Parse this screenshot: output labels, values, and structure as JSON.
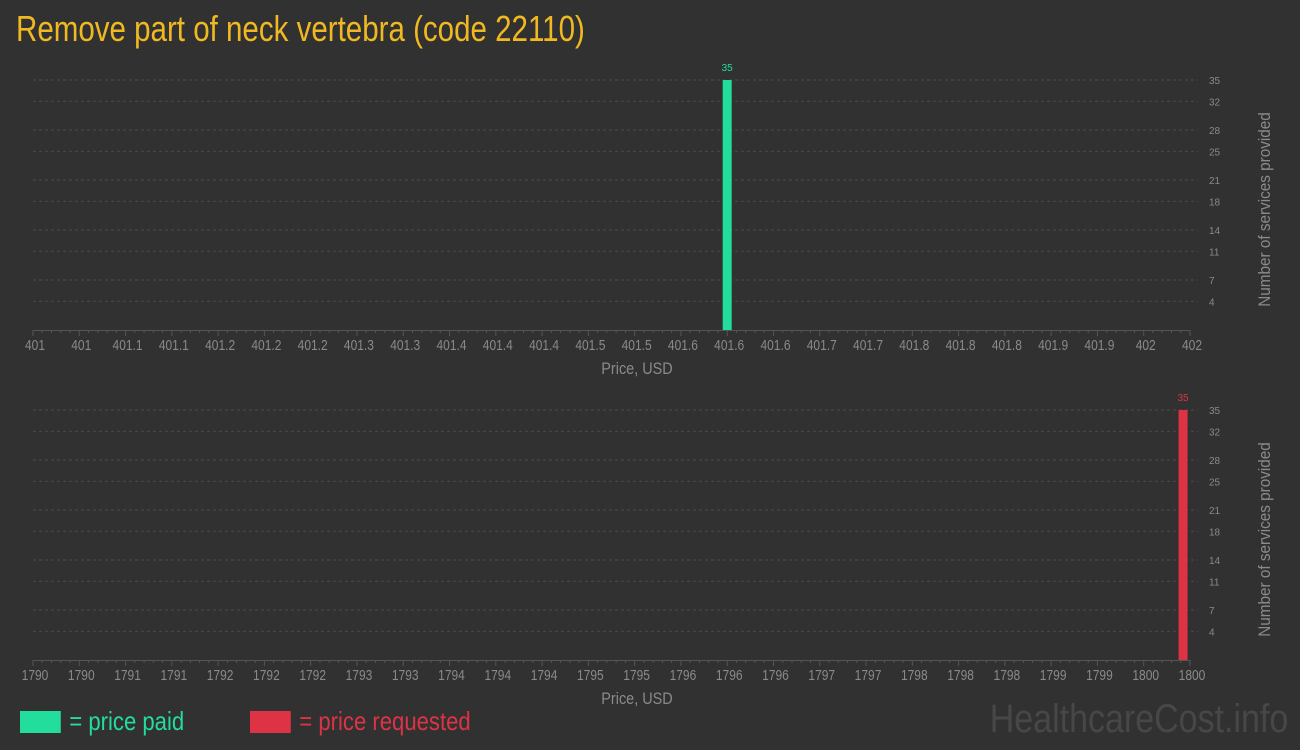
{
  "title": "Remove part of neck vertebra (code 22110)",
  "colors": {
    "paid": "#22dd9b",
    "requested": "#dd3344",
    "title": "#f0b922",
    "text": "#8a8a8a",
    "background": "#313131"
  },
  "legend": {
    "paid": "= price paid",
    "requested": "= price requested"
  },
  "watermark": "HealthcareCost.info",
  "chart_data": [
    {
      "type": "bar",
      "series_key": "paid",
      "xlabel": "Price, USD",
      "ylabel": "Number of services provided",
      "xlim": [
        401,
        402
      ],
      "ylim": [
        0,
        35
      ],
      "xtick_labels": [
        "401",
        "401",
        "401.1",
        "401.1",
        "401.2",
        "401.2",
        "401.2",
        "401.3",
        "401.3",
        "401.4",
        "401.4",
        "401.4",
        "401.5",
        "401.5",
        "401.6",
        "401.6",
        "401.6",
        "401.7",
        "401.7",
        "401.8",
        "401.8",
        "401.8",
        "401.9",
        "401.9",
        "402",
        "402"
      ],
      "ytick_labels": [
        "35",
        "32",
        "28",
        "25",
        "21",
        "18",
        "14",
        "11",
        "7",
        "4"
      ],
      "grid": true,
      "bars": [
        {
          "x": 401.6,
          "value": 35,
          "label": "35"
        }
      ]
    },
    {
      "type": "bar",
      "series_key": "requested",
      "xlabel": "Price, USD",
      "ylabel": "Number of services provided",
      "xlim": [
        1790,
        1800
      ],
      "ylim": [
        0,
        35
      ],
      "xtick_labels": [
        "1790",
        "1790",
        "1791",
        "1791",
        "1792",
        "1792",
        "1792",
        "1793",
        "1793",
        "1794",
        "1794",
        "1794",
        "1795",
        "1795",
        "1796",
        "1796",
        "1796",
        "1797",
        "1797",
        "1798",
        "1798",
        "1798",
        "1799",
        "1799",
        "1800",
        "1800"
      ],
      "ytick_labels": [
        "35",
        "32",
        "28",
        "25",
        "21",
        "18",
        "14",
        "11",
        "7",
        "4"
      ],
      "grid": true,
      "bars": [
        {
          "x": 1799.94,
          "value": 35,
          "label": "35"
        }
      ]
    }
  ]
}
